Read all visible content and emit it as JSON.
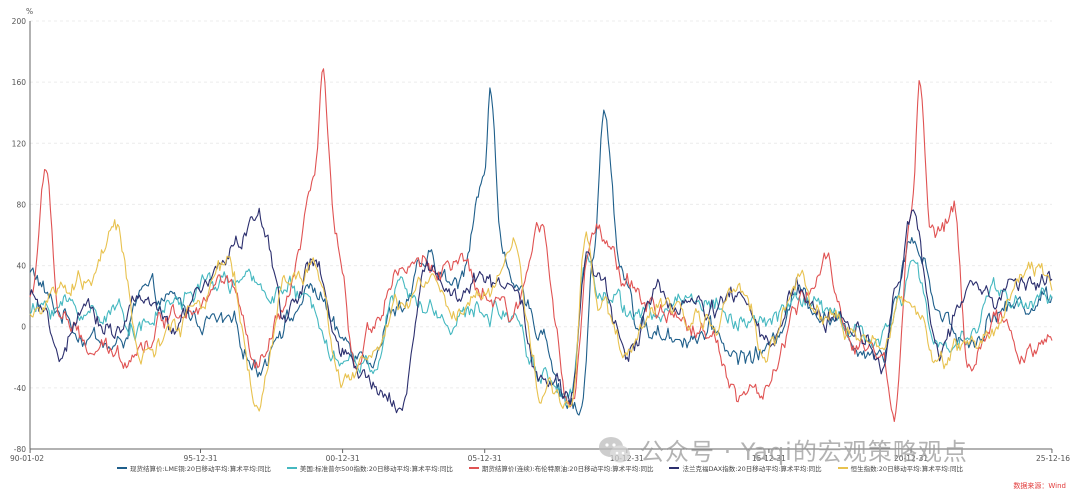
{
  "chart_data": {
    "type": "line",
    "y_unit": "%",
    "ylim": [
      -80,
      200
    ],
    "y_ticks": [
      "200",
      "160",
      "120",
      "80",
      "40",
      "0",
      "-40",
      "-80"
    ],
    "x_ticks": [
      "90-01-02",
      "95-12-31",
      "00-12-31",
      "05-12-31",
      "10-12-31",
      "15-12-31",
      "20-12-31",
      "25-12-16"
    ],
    "grid": true,
    "series": [
      {
        "name": "现货结算价:LME铜:20日移动平均:算术平均:同比",
        "color": "#1f5f8b",
        "anchors": [
          [
            1990.0,
            35
          ],
          [
            1991.0,
            10
          ],
          [
            1992.0,
            -5
          ],
          [
            1993.0,
            -15
          ],
          [
            1994.0,
            20
          ],
          [
            1995.0,
            15
          ],
          [
            1996.0,
            5
          ],
          [
            1997.0,
            0
          ],
          [
            1998.0,
            -25
          ],
          [
            1999.0,
            5
          ],
          [
            2000.0,
            25
          ],
          [
            2001.0,
            -10
          ],
          [
            2002.0,
            -15
          ],
          [
            2003.0,
            15
          ],
          [
            2004.0,
            40
          ],
          [
            2005.0,
            25
          ],
          [
            2006.0,
            100
          ],
          [
            2006.2,
            150
          ],
          [
            2006.6,
            60
          ],
          [
            2007.0,
            20
          ],
          [
            2008.0,
            0
          ],
          [
            2008.8,
            -45
          ],
          [
            2009.4,
            -55
          ],
          [
            2009.8,
            40
          ],
          [
            2010.2,
            135
          ],
          [
            2010.8,
            40
          ],
          [
            2011.5,
            0
          ],
          [
            2012.0,
            -5
          ],
          [
            2013.0,
            -5
          ],
          [
            2014.0,
            -5
          ],
          [
            2015.0,
            -20
          ],
          [
            2016.0,
            -15
          ],
          [
            2017.0,
            25
          ],
          [
            2018.0,
            10
          ],
          [
            2019.0,
            -10
          ],
          [
            2020.0,
            -15
          ],
          [
            2020.5,
            25
          ],
          [
            2021.0,
            60
          ],
          [
            2021.5,
            40
          ],
          [
            2022.0,
            10
          ],
          [
            2023.0,
            -10
          ],
          [
            2024.0,
            10
          ],
          [
            2025.0,
            15
          ],
          [
            2025.9,
            20
          ]
        ]
      },
      {
        "name": "美国:标准普尔500指数:20日移动平均:算术平均:同比",
        "color": "#45b8c0",
        "anchors": [
          [
            1990.0,
            10
          ],
          [
            1991.0,
            15
          ],
          [
            1992.0,
            10
          ],
          [
            1993.0,
            10
          ],
          [
            1994.0,
            0
          ],
          [
            1995.0,
            15
          ],
          [
            1996.0,
            25
          ],
          [
            1997.0,
            30
          ],
          [
            1998.0,
            25
          ],
          [
            1999.0,
            25
          ],
          [
            2000.0,
            10
          ],
          [
            2001.0,
            -20
          ],
          [
            2002.0,
            -25
          ],
          [
            2003.0,
            25
          ],
          [
            2004.0,
            10
          ],
          [
            2005.0,
            5
          ],
          [
            2006.0,
            10
          ],
          [
            2007.0,
            10
          ],
          [
            2008.0,
            -30
          ],
          [
            2009.0,
            -45
          ],
          [
            2009.6,
            45
          ],
          [
            2010.0,
            30
          ],
          [
            2011.0,
            10
          ],
          [
            2012.0,
            5
          ],
          [
            2013.0,
            20
          ],
          [
            2014.0,
            15
          ],
          [
            2015.0,
            5
          ],
          [
            2016.0,
            0
          ],
          [
            2017.0,
            20
          ],
          [
            2018.0,
            10
          ],
          [
            2019.0,
            -5
          ],
          [
            2020.0,
            -10
          ],
          [
            2020.6,
            15
          ],
          [
            2021.0,
            45
          ],
          [
            2022.0,
            -15
          ],
          [
            2023.0,
            -5
          ],
          [
            2024.0,
            25
          ],
          [
            2025.0,
            15
          ],
          [
            2025.9,
            20
          ]
        ]
      },
      {
        "name": "期货结算价(连续):布伦特原油:20日移动平均:算术平均:同比",
        "color": "#e05353",
        "anchors": [
          [
            1990.0,
            20
          ],
          [
            1990.6,
            100
          ],
          [
            1991.0,
            10
          ],
          [
            1992.0,
            -15
          ],
          [
            1993.0,
            -20
          ],
          [
            1994.0,
            -10
          ],
          [
            1995.0,
            10
          ],
          [
            1996.0,
            20
          ],
          [
            1997.0,
            30
          ],
          [
            1998.0,
            -30
          ],
          [
            1999.0,
            10
          ],
          [
            2000.0,
            90
          ],
          [
            2000.3,
            160
          ],
          [
            2000.8,
            50
          ],
          [
            2001.5,
            -20
          ],
          [
            2002.0,
            0
          ],
          [
            2003.0,
            40
          ],
          [
            2004.0,
            40
          ],
          [
            2005.0,
            40
          ],
          [
            2006.0,
            20
          ],
          [
            2007.0,
            5
          ],
          [
            2008.0,
            70
          ],
          [
            2009.0,
            -55
          ],
          [
            2009.8,
            60
          ],
          [
            2010.3,
            50
          ],
          [
            2011.0,
            30
          ],
          [
            2012.0,
            10
          ],
          [
            2013.0,
            0
          ],
          [
            2014.0,
            -5
          ],
          [
            2015.0,
            -45
          ],
          [
            2016.0,
            -40
          ],
          [
            2017.0,
            10
          ],
          [
            2018.0,
            40
          ],
          [
            2019.0,
            -10
          ],
          [
            2020.0,
            -20
          ],
          [
            2020.4,
            -60
          ],
          [
            2021.0,
            80
          ],
          [
            2021.3,
            160
          ],
          [
            2021.7,
            60
          ],
          [
            2022.0,
            60
          ],
          [
            2022.5,
            80
          ],
          [
            2023.0,
            -20
          ],
          [
            2024.0,
            0
          ],
          [
            2025.0,
            -15
          ],
          [
            2025.9,
            -12
          ]
        ]
      },
      {
        "name": "法兰克福DAX指数:20日移动平均:算术平均:同比",
        "color": "#2c2f6e",
        "anchors": [
          [
            1990.0,
            20
          ],
          [
            1991.0,
            -15
          ],
          [
            1992.0,
            5
          ],
          [
            1993.0,
            0
          ],
          [
            1994.0,
            20
          ],
          [
            1995.0,
            -5
          ],
          [
            1996.0,
            20
          ],
          [
            1997.0,
            50
          ],
          [
            1998.0,
            70
          ],
          [
            1999.0,
            10
          ],
          [
            2000.0,
            40
          ],
          [
            2001.0,
            -20
          ],
          [
            2002.0,
            -40
          ],
          [
            2003.0,
            -50
          ],
          [
            2004.0,
            40
          ],
          [
            2005.0,
            20
          ],
          [
            2006.0,
            30
          ],
          [
            2007.0,
            30
          ],
          [
            2008.0,
            -30
          ],
          [
            2009.0,
            -50
          ],
          [
            2009.6,
            50
          ],
          [
            2010.0,
            30
          ],
          [
            2011.0,
            -15
          ],
          [
            2012.0,
            20
          ],
          [
            2013.0,
            15
          ],
          [
            2014.0,
            10
          ],
          [
            2015.0,
            20
          ],
          [
            2016.0,
            -15
          ],
          [
            2017.0,
            25
          ],
          [
            2018.0,
            5
          ],
          [
            2019.0,
            0
          ],
          [
            2020.0,
            -20
          ],
          [
            2020.6,
            40
          ],
          [
            2021.0,
            70
          ],
          [
            2022.0,
            -15
          ],
          [
            2023.0,
            20
          ],
          [
            2024.0,
            20
          ],
          [
            2025.0,
            30
          ],
          [
            2025.9,
            25
          ]
        ]
      },
      {
        "name": "恒生指数:20日移动平均:算术平均:同比",
        "color": "#e8c24f",
        "anchors": [
          [
            1990.0,
            10
          ],
          [
            1991.0,
            20
          ],
          [
            1992.0,
            30
          ],
          [
            1993.0,
            60
          ],
          [
            1994.0,
            -20
          ],
          [
            1995.0,
            -5
          ],
          [
            1996.0,
            20
          ],
          [
            1997.0,
            40
          ],
          [
            1998.0,
            -50
          ],
          [
            1999.0,
            30
          ],
          [
            2000.0,
            40
          ],
          [
            2001.0,
            -30
          ],
          [
            2002.0,
            -20
          ],
          [
            2003.0,
            10
          ],
          [
            2004.0,
            30
          ],
          [
            2005.0,
            5
          ],
          [
            2006.0,
            20
          ],
          [
            2007.0,
            50
          ],
          [
            2008.0,
            -40
          ],
          [
            2009.0,
            -50
          ],
          [
            2009.6,
            60
          ],
          [
            2010.0,
            20
          ],
          [
            2011.0,
            -20
          ],
          [
            2012.0,
            10
          ],
          [
            2013.0,
            10
          ],
          [
            2014.0,
            5
          ],
          [
            2015.0,
            20
          ],
          [
            2016.0,
            -15
          ],
          [
            2017.0,
            30
          ],
          [
            2018.0,
            10
          ],
          [
            2019.0,
            -5
          ],
          [
            2020.0,
            -15
          ],
          [
            2020.6,
            15
          ],
          [
            2021.0,
            20
          ],
          [
            2022.0,
            -25
          ],
          [
            2023.0,
            -10
          ],
          [
            2024.0,
            0
          ],
          [
            2025.0,
            40
          ],
          [
            2025.9,
            30
          ]
        ]
      }
    ]
  },
  "source_label": "数据来源：Wind",
  "watermark": "公众号 · Yaqi的宏观策略观点"
}
